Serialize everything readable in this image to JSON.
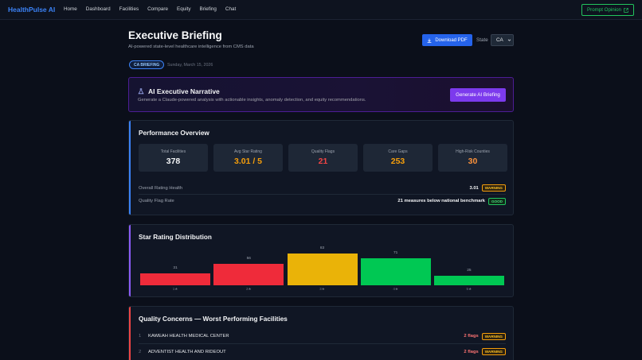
{
  "nav": {
    "brand": "HealthPulse AI",
    "links": [
      "Home",
      "Dashboard",
      "Facilities",
      "Compare",
      "Equity",
      "Briefing",
      "Chat"
    ],
    "prompt_label": "Prompt Opinion"
  },
  "header": {
    "title": "Executive Briefing",
    "subtitle": "AI-powered state-level healthcare intelligence from CMS data",
    "download_label": "Download PDF",
    "state_label": "State",
    "state_value": "CA",
    "badge": "CA BRIEFING",
    "date": "Sunday, March 15, 2026"
  },
  "narrative": {
    "title": "AI Executive Narrative",
    "subtitle": "Generate a Claude-powered analysis with actionable insights, anomaly detection, and equity recommendations.",
    "button": "Generate AI Briefing"
  },
  "performance": {
    "title": "Performance Overview",
    "stats": [
      {
        "label": "Total Facilities",
        "value": "378",
        "color": "#f3f4f6"
      },
      {
        "label": "Avg Star Rating",
        "value": "3.01 / 5",
        "color": "#f59e0b"
      },
      {
        "label": "Quality Flags",
        "value": "21",
        "color": "#ef4444"
      },
      {
        "label": "Care Gaps",
        "value": "253",
        "color": "#f59e0b"
      },
      {
        "label": "High-Risk Counties",
        "value": "30",
        "color": "#fb923c"
      }
    ],
    "rows": [
      {
        "label": "Overall Rating Health",
        "value": "3.01",
        "status": "WARNING"
      },
      {
        "label": "Quality Flag Rate",
        "value": "21 measures below national benchmark",
        "status": "GOOD"
      }
    ]
  },
  "chart_data": {
    "type": "bar",
    "title": "Star Rating Distribution",
    "categories": [
      "1★",
      "2★",
      "3★",
      "4★",
      "5★"
    ],
    "values": [
      31,
      56,
      83,
      71,
      25
    ],
    "colors": [
      "#ef2b3a",
      "#ef2b3a",
      "#eab308",
      "#00c853",
      "#00c853"
    ],
    "ylim": [
      0,
      83
    ]
  },
  "quality": {
    "title": "Quality Concerns — Worst Performing Facilities",
    "items": [
      {
        "num": "1",
        "name": "KAWEAH HEALTH MEDICAL CENTER",
        "flags": "2 flags",
        "status": "WARNING"
      },
      {
        "num": "2",
        "name": "ADVENTIST HEALTH AND RIDEOUT",
        "flags": "2 flags",
        "status": "WARNING"
      }
    ]
  },
  "colors": {
    "perf_accent": "#3b82f6",
    "dist_accent": "#8b5cf6",
    "quality_accent": "#ef4444"
  }
}
